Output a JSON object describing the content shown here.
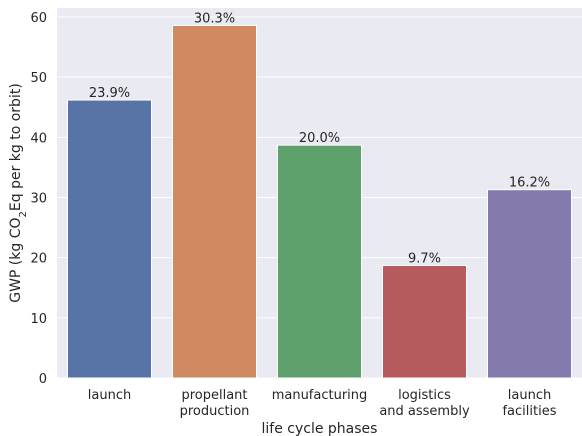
{
  "chart_data": {
    "type": "bar",
    "categories": [
      [
        "launch"
      ],
      [
        "propellant",
        "production"
      ],
      [
        "manufacturing"
      ],
      [
        "logistics",
        "and assembly"
      ],
      [
        "launch",
        "facilities"
      ]
    ],
    "values": [
      46.2,
      58.6,
      38.7,
      18.7,
      31.3
    ],
    "data_labels": [
      "23.9%",
      "30.3%",
      "20.0%",
      "9.7%",
      "16.2%"
    ],
    "colors": [
      "#5874a6",
      "#cf8a61",
      "#5fa16d",
      "#b85b5f",
      "#857aae"
    ],
    "xlabel": "life cycle phases",
    "ylabel": {
      "prefix": "GWP (kg CO",
      "subscript": "2",
      "suffix": "Eq per kg to orbit)"
    },
    "ylim": [
      0,
      61.5
    ],
    "yticks": [
      0,
      10,
      20,
      30,
      40,
      50,
      60
    ],
    "grid": true,
    "background": "#eaeaf2",
    "title": ""
  }
}
